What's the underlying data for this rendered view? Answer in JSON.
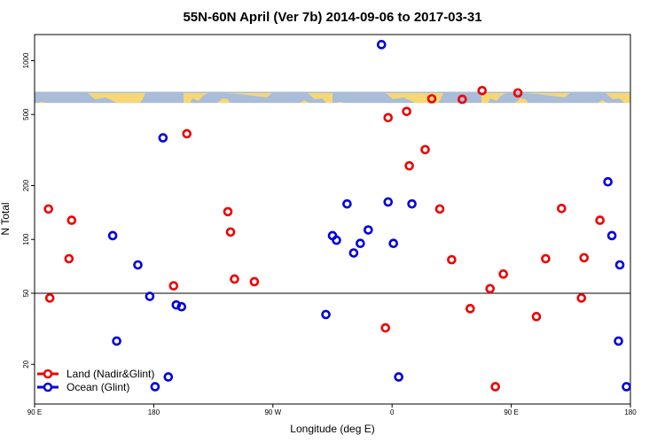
{
  "chart_data": {
    "type": "scatter",
    "title": "55N-60N April (Ver 7b)   2014-09-06 to 2017-03-31",
    "xlabel": "Longitude (deg E)",
    "ylabel": "N Total",
    "x_scale": "unwrapped longitude, 90E to 180 (two full revolutions)",
    "xlim": [
      90,
      540
    ],
    "y_scale": "log",
    "ylim": [
      12,
      1400
    ],
    "x_ticks": [
      {
        "value": 90,
        "label": "90 E"
      },
      {
        "value": 180,
        "label": "180"
      },
      {
        "value": 270,
        "label": "90 W"
      },
      {
        "value": 360,
        "label": "0"
      },
      {
        "value": 450,
        "label": "90 E"
      },
      {
        "value": 540,
        "label": "180"
      }
    ],
    "y_ticks": [
      {
        "value": 20,
        "label": "20"
      },
      {
        "value": 50,
        "label": "50"
      },
      {
        "value": 100,
        "label": "100"
      },
      {
        "value": 200,
        "label": "200"
      },
      {
        "value": 500,
        "label": "500"
      },
      {
        "value": 1000,
        "label": "1000"
      }
    ],
    "reference_line": {
      "y": 50
    },
    "map_band": {
      "y_min": 580,
      "y_max": 670,
      "land_color": "#f7d774",
      "ocean_color": "#a9bcd8"
    },
    "legend_position": "bottom-left",
    "series": [
      {
        "name": "Land (Nadir&Glint)",
        "color": "#ee0000",
        "x": [
          100.5,
          101.5,
          116,
          118,
          195,
          205,
          236,
          238,
          241,
          256,
          355,
          357,
          371,
          373,
          385,
          390,
          396,
          405,
          413,
          419,
          428,
          434,
          438,
          444,
          455,
          469,
          476,
          488,
          503,
          505,
          517
        ],
        "y": [
          148,
          47,
          78,
          128,
          55,
          390,
          143,
          110,
          60,
          58,
          32,
          480,
          520,
          258,
          318,
          612,
          148,
          77,
          608,
          41,
          680,
          53,
          15,
          64,
          660,
          37,
          78,
          149,
          47,
          79,
          128
        ]
      },
      {
        "name": "Ocean (Glint)",
        "color": "#0000dd",
        "x": [
          149,
          152,
          168,
          177,
          181,
          187,
          191,
          197,
          201,
          310,
          315,
          318,
          326,
          331,
          336,
          342,
          352,
          357,
          361,
          365,
          375,
          523,
          526,
          531,
          532,
          537
        ],
        "y": [
          105,
          27,
          72,
          48,
          15,
          370,
          17,
          43,
          42,
          38,
          105,
          99,
          158,
          84,
          95,
          113,
          1230,
          162,
          95,
          17,
          158,
          210,
          105,
          27,
          72,
          15
        ]
      }
    ]
  }
}
